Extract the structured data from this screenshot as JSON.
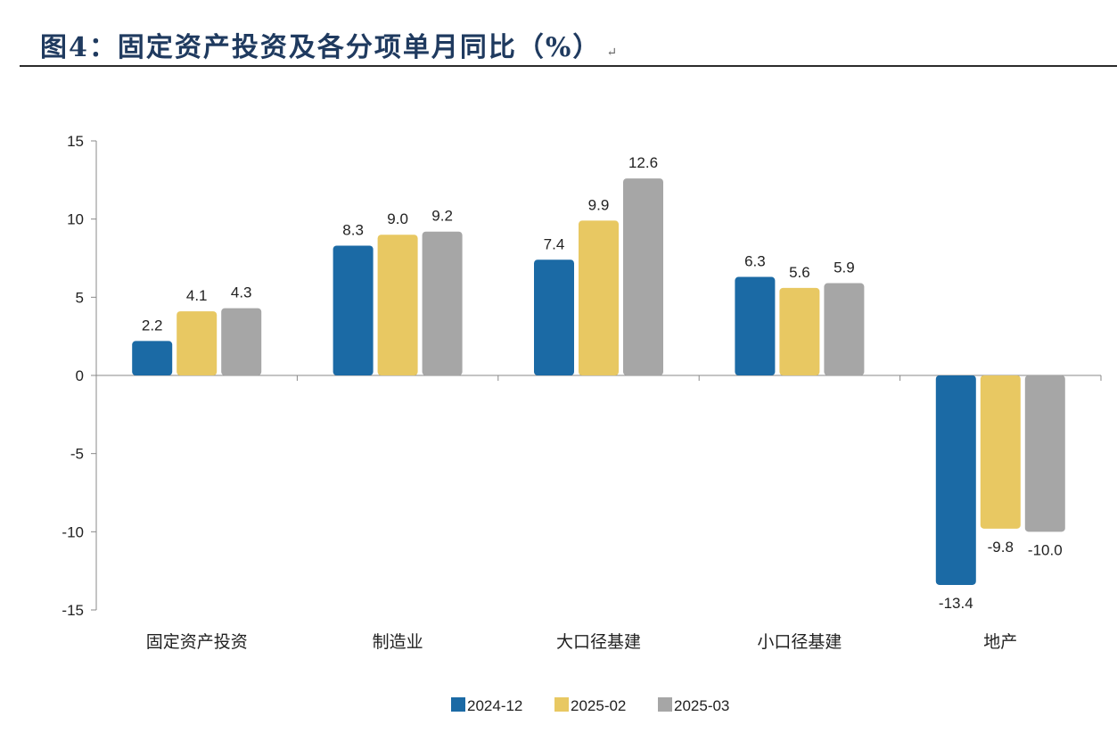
{
  "header": {
    "title": "图4：固定资产投资及各分项单月同比（%）",
    "mark": "↵"
  },
  "chart_data": {
    "type": "bar",
    "title": "图4：固定资产投资及各分项单月同比（%）",
    "categories": [
      "固定资产投资",
      "制造业",
      "大口径基建",
      "小口径基建",
      "地产"
    ],
    "series": [
      {
        "name": "2024-12",
        "color": "#1b6aa5",
        "values": [
          2.2,
          8.3,
          7.4,
          6.3,
          -13.4
        ],
        "labels": [
          "2.2",
          "8.3",
          "7.4",
          "6.3",
          "-13.4"
        ]
      },
      {
        "name": "2025-02",
        "color": "#e8c862",
        "values": [
          4.1,
          9.0,
          9.9,
          5.6,
          -9.8
        ],
        "labels": [
          "4.1",
          "9.0",
          "9.9",
          "5.6",
          "-9.8"
        ]
      },
      {
        "name": "2025-03",
        "color": "#a6a6a6",
        "values": [
          4.3,
          9.2,
          12.6,
          5.9,
          -10.0
        ],
        "labels": [
          "4.3",
          "9.2",
          "12.6",
          "5.9",
          "-10.0"
        ]
      }
    ],
    "ylim": [
      -15,
      15
    ],
    "yticks": [
      15,
      10,
      5,
      0,
      -5,
      -10,
      -15
    ],
    "ytick_labels": [
      "15",
      "10",
      "5",
      "0",
      "-5",
      "-10",
      "-15"
    ],
    "xlabel": "",
    "ylabel": "",
    "grid": false,
    "legend_position": "bottom-center"
  }
}
